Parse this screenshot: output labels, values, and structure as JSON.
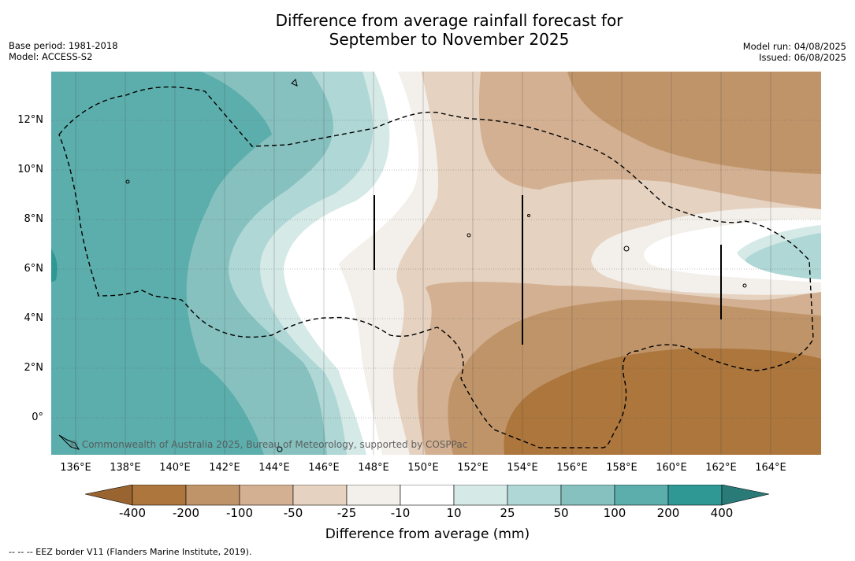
{
  "title_line1": "Difference from average rainfall forecast for",
  "title_line2": "September to November 2025",
  "meta_left": {
    "base_period": "Base period: 1981-2018",
    "model": "Model: ACCESS-S2"
  },
  "meta_right": {
    "model_run": "Model run: 04/08/2025",
    "issued": "Issued: 06/08/2025"
  },
  "map": {
    "lat_labels": [
      "12°N",
      "10°N",
      "8°N",
      "6°N",
      "4°N",
      "2°N",
      "0°"
    ],
    "lon_labels": [
      "136°E",
      "138°E",
      "140°E",
      "142°E",
      "144°E",
      "146°E",
      "148°E",
      "150°E",
      "152°E",
      "154°E",
      "156°E",
      "158°E",
      "160°E",
      "162°E",
      "164°E"
    ],
    "credit": "© Commonwealth of Australia 2025, Bureau of Meteorology, supported by COSPPac"
  },
  "colorbar": {
    "title": "Difference from average (mm)",
    "ticks": [
      "-400",
      "-200",
      "-100",
      "-50",
      "-25",
      "-10",
      "10",
      "25",
      "50",
      "100",
      "200",
      "400"
    ],
    "colors": {
      "below_-400": "#9a6431",
      "-400_-200": "#ac763c",
      "-200_-100": "#c09469",
      "-100_-50": "#d3b092",
      "-50_-25": "#e5d2c0",
      "-25_-10": "#f3efea",
      "-10_10": "#ffffff",
      "10_25": "#d5e9e7",
      "25_50": "#aed7d5",
      "50_100": "#86c1bf",
      "100_200": "#5caeac",
      "200_400": "#2f9794",
      "above_400": "#2a7a78"
    }
  },
  "footer": "--  --  -- EEZ border V11 (Flanders Marine Institute, 2019)."
}
